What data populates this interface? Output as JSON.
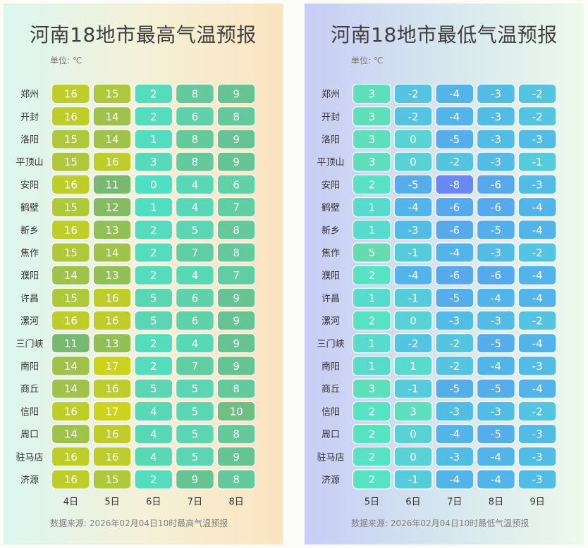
{
  "chart_data": [
    {
      "type": "heatmap",
      "title": "河南18地市最高气温预报",
      "unit": "单位: ℃",
      "source": "数据来源: 2026年02月04日10时最高气温预报",
      "rows": [
        "郑州",
        "开封",
        "洛阳",
        "平顶山",
        "安阳",
        "鹤壁",
        "新乡",
        "焦作",
        "濮阳",
        "许昌",
        "漯河",
        "三门峡",
        "南阳",
        "商丘",
        "信阳",
        "周口",
        "驻马店",
        "济源"
      ],
      "columns": [
        "4日",
        "5日",
        "6日",
        "7日",
        "8日"
      ],
      "values": [
        [
          16,
          15,
          2,
          8,
          9
        ],
        [
          16,
          14,
          2,
          6,
          8
        ],
        [
          15,
          14,
          1,
          8,
          9
        ],
        [
          15,
          16,
          3,
          8,
          9
        ],
        [
          16,
          11,
          0,
          4,
          6
        ],
        [
          15,
          12,
          1,
          4,
          7
        ],
        [
          16,
          13,
          2,
          5,
          8
        ],
        [
          15,
          14,
          2,
          7,
          8
        ],
        [
          14,
          13,
          2,
          4,
          7
        ],
        [
          15,
          16,
          5,
          6,
          9
        ],
        [
          16,
          16,
          5,
          6,
          9
        ],
        [
          11,
          13,
          2,
          4,
          9
        ],
        [
          14,
          17,
          2,
          7,
          9
        ],
        [
          14,
          16,
          5,
          5,
          8
        ],
        [
          16,
          17,
          4,
          5,
          10
        ],
        [
          14,
          16,
          4,
          5,
          8
        ],
        [
          16,
          16,
          4,
          5,
          9
        ],
        [
          16,
          15,
          2,
          9,
          8
        ]
      ],
      "color_stops": [
        {
          "value": 0,
          "color": "#4ee0c4"
        },
        {
          "value": 5,
          "color": "#5cd6b2"
        },
        {
          "value": 9,
          "color": "#66c493"
        },
        {
          "value": 11,
          "color": "#78b870"
        },
        {
          "value": 14,
          "color": "#a0c24a"
        },
        {
          "value": 17,
          "color": "#cdd21a"
        }
      ]
    },
    {
      "type": "heatmap",
      "title": "河南18地市最低气温预报",
      "unit": "单位: ℃",
      "source": "数据来源: 2026年02月04日10时最低气温预报",
      "rows": [
        "郑州",
        "开封",
        "洛阳",
        "平顶山",
        "安阳",
        "鹤壁",
        "新乡",
        "焦作",
        "濮阳",
        "许昌",
        "漯河",
        "三门峡",
        "南阳",
        "商丘",
        "信阳",
        "周口",
        "驻马店",
        "济源"
      ],
      "columns": [
        "5日",
        "6日",
        "7日",
        "8日",
        "9日"
      ],
      "values": [
        [
          3,
          -2,
          -4,
          -3,
          -2
        ],
        [
          3,
          -2,
          -4,
          -3,
          -2
        ],
        [
          3,
          0,
          -5,
          -3,
          -3
        ],
        [
          3,
          0,
          -2,
          -3,
          -1
        ],
        [
          2,
          -5,
          -8,
          -6,
          -3
        ],
        [
          1,
          -4,
          -6,
          -6,
          -4
        ],
        [
          1,
          -3,
          -6,
          -5,
          -4
        ],
        [
          5,
          -1,
          -4,
          -3,
          -2
        ],
        [
          2,
          -4,
          -6,
          -6,
          -4
        ],
        [
          1,
          -1,
          -5,
          -4,
          -4
        ],
        [
          2,
          0,
          -3,
          -3,
          -2
        ],
        [
          1,
          -2,
          -2,
          -5,
          -4
        ],
        [
          1,
          1,
          -2,
          -4,
          -3
        ],
        [
          3,
          -1,
          -5,
          -5,
          -4
        ],
        [
          2,
          3,
          -3,
          -3,
          -2
        ],
        [
          2,
          0,
          -4,
          -5,
          -3
        ],
        [
          2,
          0,
          -3,
          -4,
          -3
        ],
        [
          2,
          -1,
          -4,
          -4,
          -3
        ]
      ],
      "color_stops": [
        {
          "value": -8,
          "color": "#6a88f2"
        },
        {
          "value": -6,
          "color": "#58a8ec"
        },
        {
          "value": -4,
          "color": "#52b4e8"
        },
        {
          "value": -2,
          "color": "#54c4e0"
        },
        {
          "value": 0,
          "color": "#58d2d4"
        },
        {
          "value": 2,
          "color": "#58e2c4"
        },
        {
          "value": 5,
          "color": "#66dab0"
        }
      ]
    }
  ]
}
